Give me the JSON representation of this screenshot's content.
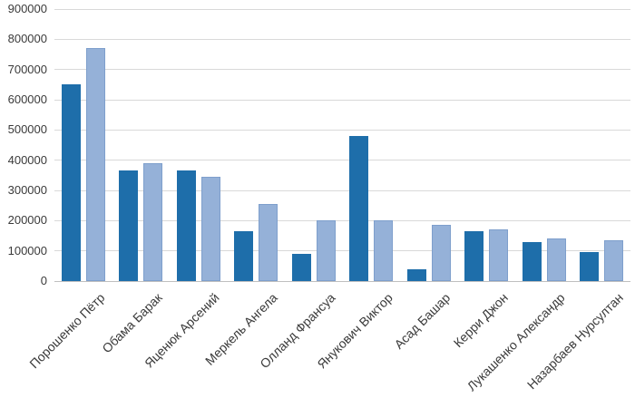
{
  "chart_data": {
    "type": "bar",
    "title": "",
    "xlabel": "",
    "ylabel": "",
    "categories": [
      "Порошенко Пётр",
      "Обама Барак",
      "Яценюк Арсений",
      "Меркель Ангела",
      "Олланд Франсуа",
      "Янукович Виктор",
      "Асад Башар",
      "Керри Джон",
      "Лукашенко Александр",
      "Назарбаев Нурсултан"
    ],
    "series": [
      {
        "name": "",
        "color": "#1E6EAA",
        "border": "",
        "values": [
          650000,
          365000,
          365000,
          165000,
          90000,
          480000,
          40000,
          165000,
          130000,
          95000
        ]
      },
      {
        "name": "",
        "color": "#95B1D8",
        "border": "#7E9FCC",
        "values": [
          770000,
          390000,
          345000,
          255000,
          200000,
          200000,
          185000,
          170000,
          140000,
          135000
        ]
      }
    ],
    "ylim": [
      0,
      900000
    ],
    "ytick_step": 100000,
    "yticks": [
      "0",
      "100000",
      "200000",
      "300000",
      "400000",
      "500000",
      "600000",
      "700000",
      "800000",
      "900000"
    ],
    "grid": true,
    "legend": false,
    "x_label_rotation_deg": -45
  },
  "colors": {
    "background": "#FFFFFF",
    "gridline": "#D9D9D9",
    "axis_line": "#BFBFBF",
    "text": "#3A3A3A"
  }
}
